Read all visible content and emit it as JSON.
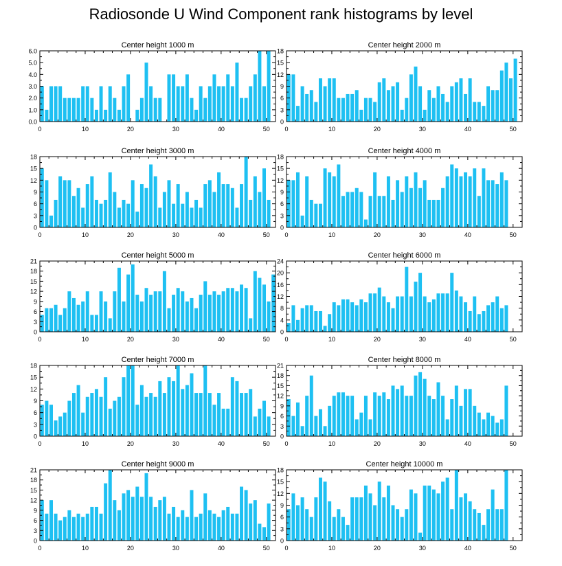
{
  "title": "Radiosonde U Wind Component rank histograms by level",
  "bar_color": "#1ec0f2",
  "chart_data": [
    {
      "type": "bar",
      "title": "Center height 1000 m",
      "ylim": [
        0,
        6
      ],
      "yticks": [
        "0.0",
        "1.0",
        "2.0",
        "3.0",
        "4.0",
        "5.0",
        "6.0"
      ],
      "xticks": [
        0,
        10,
        20,
        30,
        40,
        50
      ],
      "values": [
        3,
        1,
        3,
        3,
        3,
        2,
        2,
        2,
        2,
        3,
        3,
        2,
        1,
        3,
        1,
        3,
        2,
        1,
        3,
        4,
        0,
        1,
        2,
        5,
        3,
        2,
        2,
        0,
        4,
        4,
        3,
        3,
        4,
        2,
        1,
        3,
        2,
        3,
        4,
        3,
        3,
        4,
        3,
        5,
        2,
        2,
        3,
        4,
        6,
        3,
        6
      ]
    },
    {
      "type": "bar",
      "title": "Center height 2000 m",
      "ylim": [
        0,
        18
      ],
      "yticks": [
        "0",
        "3",
        "6",
        "9",
        "12",
        "15",
        "18"
      ],
      "xticks": [
        0,
        10,
        20,
        30,
        40,
        50
      ],
      "values": [
        12,
        12,
        4,
        9,
        7,
        8,
        5,
        11,
        9,
        11,
        11,
        6,
        6,
        7,
        7,
        8,
        3,
        6,
        6,
        5,
        10,
        11,
        8,
        9,
        10,
        3,
        6,
        12,
        14,
        9,
        3,
        8,
        6,
        9,
        7,
        5,
        9,
        10,
        11,
        7,
        11,
        5,
        5,
        4,
        9,
        8,
        8,
        13,
        15,
        11,
        16
      ]
    },
    {
      "type": "bar",
      "title": "Center height 3000 m",
      "ylim": [
        0,
        18
      ],
      "yticks": [
        "0",
        "3",
        "6",
        "9",
        "12",
        "15",
        "18"
      ],
      "xticks": [
        0,
        10,
        20,
        30,
        40,
        50
      ],
      "values": [
        15,
        12,
        3,
        7,
        13,
        12,
        12,
        8,
        10,
        5,
        11,
        13,
        7,
        6,
        7,
        14,
        9,
        5,
        7,
        6,
        12,
        4,
        11,
        10,
        16,
        13,
        5,
        9,
        12,
        6,
        11,
        6,
        9,
        5,
        7,
        5,
        11,
        12,
        9,
        14,
        11,
        11,
        10,
        5,
        11,
        18,
        7,
        13,
        9,
        15,
        7
      ]
    },
    {
      "type": "bar",
      "title": "Center height 4000 m",
      "ylim": [
        0,
        18
      ],
      "yticks": [
        "0",
        "3",
        "6",
        "9",
        "12",
        "15",
        "18"
      ],
      "xticks": [
        0,
        10,
        20,
        30,
        40,
        50
      ],
      "values": [
        12,
        12,
        14,
        3,
        13,
        7,
        6,
        6,
        15,
        14,
        13,
        16,
        8,
        9,
        9,
        10,
        9,
        2,
        8,
        14,
        8,
        8,
        13,
        7,
        12,
        9,
        13,
        10,
        14,
        10,
        12,
        7,
        7,
        7,
        10,
        13,
        16,
        15,
        13,
        14,
        13,
        15,
        8,
        15,
        12,
        12,
        11,
        14,
        12,
        0,
        0
      ]
    },
    {
      "type": "bar",
      "title": "Center height 5000 m",
      "ylim": [
        0,
        21
      ],
      "yticks": [
        "0",
        "3",
        "6",
        "9",
        "12",
        "15",
        "18",
        "21"
      ],
      "xticks": [
        0,
        10,
        20,
        30,
        40,
        50
      ],
      "values": [
        5,
        7,
        7,
        8,
        5,
        7,
        12,
        10,
        8,
        9,
        12,
        5,
        5,
        12,
        9,
        4,
        12,
        19,
        9,
        17,
        20,
        11,
        9,
        13,
        11,
        12,
        12,
        18,
        7,
        11,
        13,
        12,
        9,
        10,
        7,
        11,
        15,
        11,
        12,
        11,
        12,
        13,
        13,
        12,
        14,
        13,
        4,
        18,
        16,
        14,
        9,
        17
      ]
    },
    {
      "type": "bar",
      "title": "Center height 6000 m",
      "ylim": [
        0,
        24
      ],
      "yticks": [
        "0",
        "4",
        "8",
        "12",
        "16",
        "20",
        "24"
      ],
      "xticks": [
        0,
        10,
        20,
        30,
        40,
        50
      ],
      "values": [
        3,
        9,
        4,
        8,
        9,
        9,
        7,
        7,
        2,
        6,
        10,
        9,
        11,
        11,
        10,
        9,
        11,
        10,
        13,
        13,
        15,
        12,
        10,
        8,
        12,
        12,
        22,
        12,
        17,
        20,
        12,
        10,
        11,
        13,
        13,
        13,
        20,
        14,
        12,
        10,
        7,
        12,
        6,
        7,
        9,
        10,
        12,
        8,
        9,
        0,
        0
      ]
    },
    {
      "type": "bar",
      "title": "Center height 7000 m",
      "ylim": [
        0,
        18
      ],
      "yticks": [
        "0",
        "3",
        "6",
        "9",
        "12",
        "15",
        "18"
      ],
      "xticks": [
        0,
        10,
        20,
        30,
        40,
        50
      ],
      "values": [
        8,
        9,
        8,
        4,
        5,
        6,
        9,
        11,
        13,
        6,
        10,
        11,
        12,
        10,
        15,
        7,
        9,
        10,
        15,
        18,
        18,
        8,
        13,
        10,
        11,
        10,
        14,
        11,
        15,
        14,
        18,
        12,
        13,
        16,
        11,
        11,
        18,
        11,
        8,
        11,
        7,
        7,
        15,
        14,
        11,
        11,
        12,
        5,
        7,
        9,
        5
      ]
    },
    {
      "type": "bar",
      "title": "Center height 8000 m",
      "ylim": [
        0,
        21
      ],
      "yticks": [
        "0",
        "3",
        "6",
        "9",
        "12",
        "15",
        "18",
        "21"
      ],
      "xticks": [
        0,
        10,
        20,
        30,
        40,
        50
      ],
      "values": [
        11,
        6,
        10,
        3,
        12,
        18,
        6,
        8,
        3,
        9,
        12,
        13,
        13,
        12,
        12,
        5,
        7,
        12,
        5,
        13,
        12,
        13,
        11,
        15,
        14,
        15,
        12,
        12,
        18,
        19,
        17,
        12,
        11,
        16,
        12,
        5,
        11,
        15,
        9,
        14,
        14,
        9,
        7,
        5,
        7,
        6,
        4,
        5,
        15,
        0,
        0
      ]
    },
    {
      "type": "bar",
      "title": "Center height 9000 m",
      "ylim": [
        0,
        21
      ],
      "yticks": [
        "0",
        "3",
        "6",
        "9",
        "12",
        "15",
        "18",
        "21"
      ],
      "xticks": [
        0,
        10,
        20,
        30,
        40,
        50
      ],
      "values": [
        12,
        8,
        12,
        8,
        6,
        7,
        9,
        7,
        8,
        7,
        8,
        10,
        10,
        8,
        17,
        21,
        12,
        9,
        14,
        15,
        13,
        16,
        13,
        20,
        13,
        10,
        12,
        13,
        8,
        10,
        7,
        9,
        7,
        15,
        7,
        8,
        14,
        9,
        8,
        7,
        9,
        10,
        8,
        8,
        16,
        15,
        11,
        12,
        5,
        4,
        11
      ]
    },
    {
      "type": "bar",
      "title": "Center height 10000 m",
      "ylim": [
        0,
        18
      ],
      "yticks": [
        "0",
        "3",
        "6",
        "9",
        "12",
        "15",
        "18"
      ],
      "xticks": [
        0,
        10,
        20,
        30,
        40,
        50
      ],
      "values": [
        8,
        12,
        9,
        11,
        8,
        6,
        11,
        16,
        15,
        10,
        6,
        8,
        6,
        4,
        11,
        11,
        11,
        14,
        12,
        9,
        15,
        11,
        14,
        9,
        8,
        6,
        8,
        13,
        12,
        2,
        14,
        14,
        13,
        12,
        15,
        16,
        8,
        18,
        11,
        12,
        10,
        8,
        7,
        4,
        8,
        13,
        8,
        8,
        18,
        0,
        0
      ]
    }
  ]
}
